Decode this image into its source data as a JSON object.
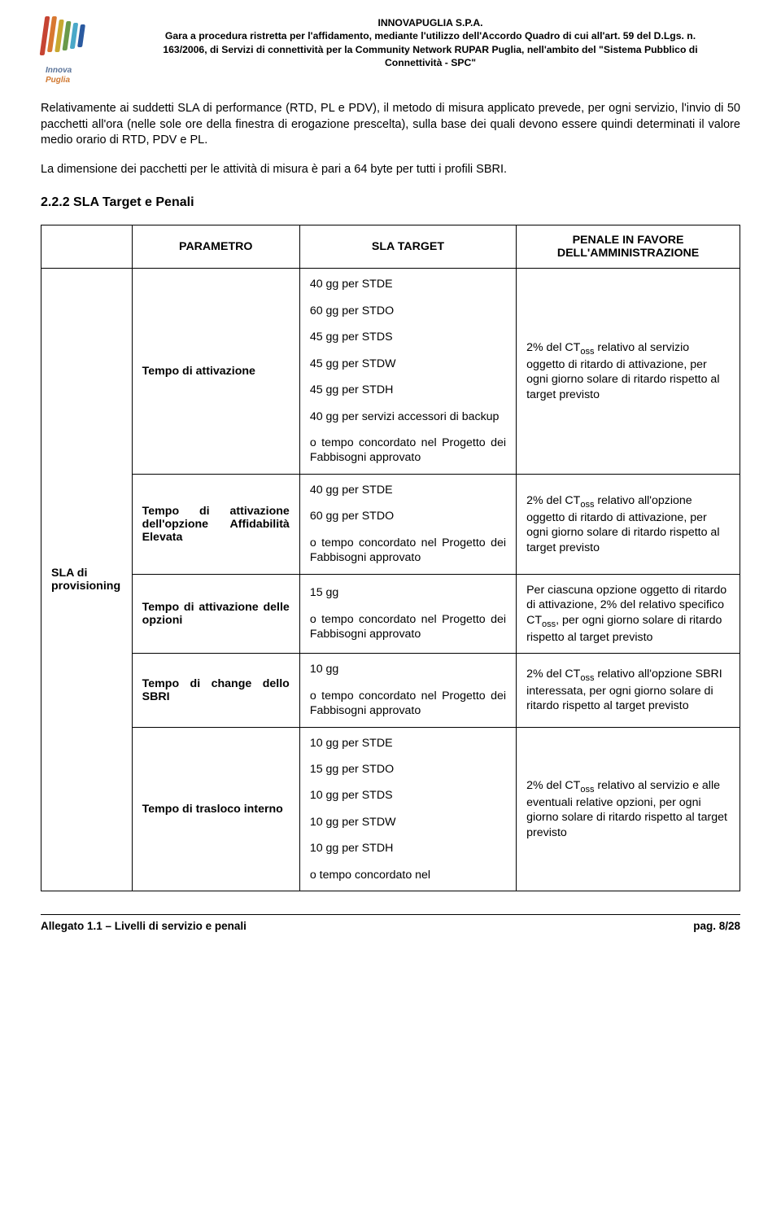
{
  "logo": {
    "line1": "Innova",
    "line2": "Puglia"
  },
  "header": {
    "l1": "INNOVAPUGLIA S.P.A.",
    "l2": "Gara a procedura ristretta per l'affidamento, mediante l'utilizzo dell'Accordo Quadro di cui all'art. 59 del D.Lgs. n.",
    "l3": "163/2006, di Servizi di connettività per la Community Network RUPAR Puglia, nell'ambito del \"Sistema Pubblico di",
    "l4": "Connettività - SPC\""
  },
  "para1": "Relativamente ai suddetti SLA di performance (RTD, PL e PDV), il metodo di misura applicato prevede, per ogni servizio, l'invio di 50 pacchetti all'ora (nelle sole ore della finestra di erogazione prescelta), sulla base dei quali devono essere quindi determinati il valore medio orario di RTD, PDV e PL.",
  "para2": "La dimensione dei pacchetti per le attività di misura è pari a 64 byte per tutti i profili SBRI.",
  "section_title": "2.2.2  SLA Target e Penali",
  "table": {
    "head": {
      "c1": "",
      "c2": "PARAMETRO",
      "c3": "SLA TARGET",
      "c4_l1": "PENALE IN FAVORE",
      "c4_l2": "DELL'AMMINISTRAZIONE"
    },
    "side_label": "SLA di provisioning",
    "rows": [
      {
        "param": "Tempo di attivazione",
        "targets": [
          "40 gg per STDE",
          "60 gg per STDO",
          "45 gg per STDS",
          "45 gg per STDW",
          "45 gg per STDH",
          "40 gg  per servizi accessori di backup",
          "o tempo concordato nel Progetto dei Fabbisogni approvato"
        ],
        "penale_pre": "2% del CT",
        "penale_sub": "oss",
        "penale_post": " relativo al servizio oggetto di ritardo di attivazione, per ogni giorno solare di ritardo rispetto al target previsto"
      },
      {
        "param": "Tempo di attivazione dell'opzione Affidabilità Elevata",
        "targets": [
          "40 gg per STDE",
          "60 gg per STDO",
          "o tempo concordato nel Progetto dei Fabbisogni approvato"
        ],
        "penale_pre": "2% del CT",
        "penale_sub": "oss",
        "penale_post": " relativo all'opzione oggetto di ritardo di attivazione, per ogni giorno solare di ritardo rispetto al target previsto"
      },
      {
        "param": "Tempo di attivazione delle opzioni",
        "targets": [
          "15 gg",
          "o tempo concordato nel Progetto dei Fabbisogni approvato"
        ],
        "penale_pre": "Per ciascuna opzione oggetto di ritardo di attivazione, 2% del relativo specifico CT",
        "penale_sub": "oss",
        "penale_post": ", per ogni giorno solare di ritardo rispetto al target previsto"
      },
      {
        "param": "Tempo di change dello SBRI",
        "targets": [
          "10 gg",
          "o tempo concordato nel Progetto dei Fabbisogni approvato"
        ],
        "penale_pre": "2% del CT",
        "penale_sub": "oss",
        "penale_post": " relativo all'opzione SBRI interessata, per ogni giorno solare di ritardo rispetto al target previsto"
      },
      {
        "param": "Tempo di trasloco interno",
        "targets": [
          "10 gg per STDE",
          "15 gg per STDO",
          "10 gg per STDS",
          "10 gg per STDW",
          "10 gg per STDH",
          "o  tempo  concordato  nel"
        ],
        "penale_pre": "2% del CT",
        "penale_sub": "oss",
        "penale_post": " relativo al servizio e alle eventuali relative opzioni, per ogni giorno solare di ritardo rispetto al target previsto"
      }
    ]
  },
  "footer": {
    "left": "Allegato 1.1 – Livelli di servizio e penali",
    "right": "pag. 8/28"
  },
  "colors": {
    "stripe_blue": "#2a5aa0",
    "stripe_cyan": "#4aa8c8",
    "stripe_green": "#6a9a4a",
    "stripe_yellow": "#c8a830",
    "stripe_orange": "#d87830",
    "stripe_red": "#c64432"
  }
}
